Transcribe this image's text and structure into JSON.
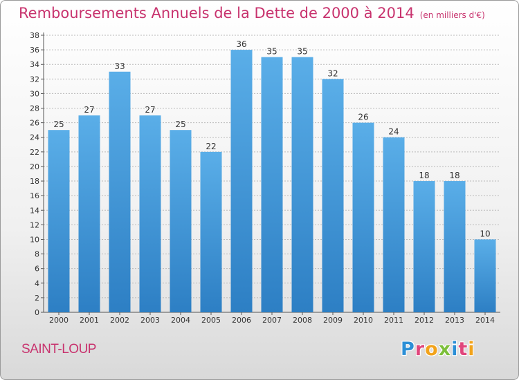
{
  "header": {
    "title": "Remboursements Annuels de la Dette de 2000 à 2014",
    "unit": "(en milliers d'€)"
  },
  "footer": {
    "commune": "SAINT-LOUP",
    "logo_text": "Proxiti",
    "logo_colors": [
      "#2b8fd6",
      "#e0467c",
      "#f2a31b",
      "#7cbf3a",
      "#2b8fd6",
      "#e0467c",
      "#f2a31b"
    ]
  },
  "colors": {
    "bar_top": "#5aaee8",
    "bar_bottom": "#2d7fc4",
    "title": "#c8336e",
    "grid": "#b9b9b9"
  },
  "chart_data": {
    "type": "bar",
    "title": "Remboursements Annuels de la Dette de 2000 à 2014",
    "xlabel": "",
    "ylabel": "",
    "categories": [
      "2000",
      "2001",
      "2002",
      "2003",
      "2004",
      "2005",
      "2006",
      "2007",
      "2008",
      "2009",
      "2010",
      "2011",
      "2012",
      "2013",
      "2014"
    ],
    "values": [
      25,
      27,
      33,
      27,
      25,
      22,
      36,
      35,
      35,
      32,
      26,
      24,
      18,
      18,
      10
    ],
    "ylim": [
      0,
      38
    ],
    "ytick_step": 2,
    "grid": true,
    "data_labels": true
  }
}
